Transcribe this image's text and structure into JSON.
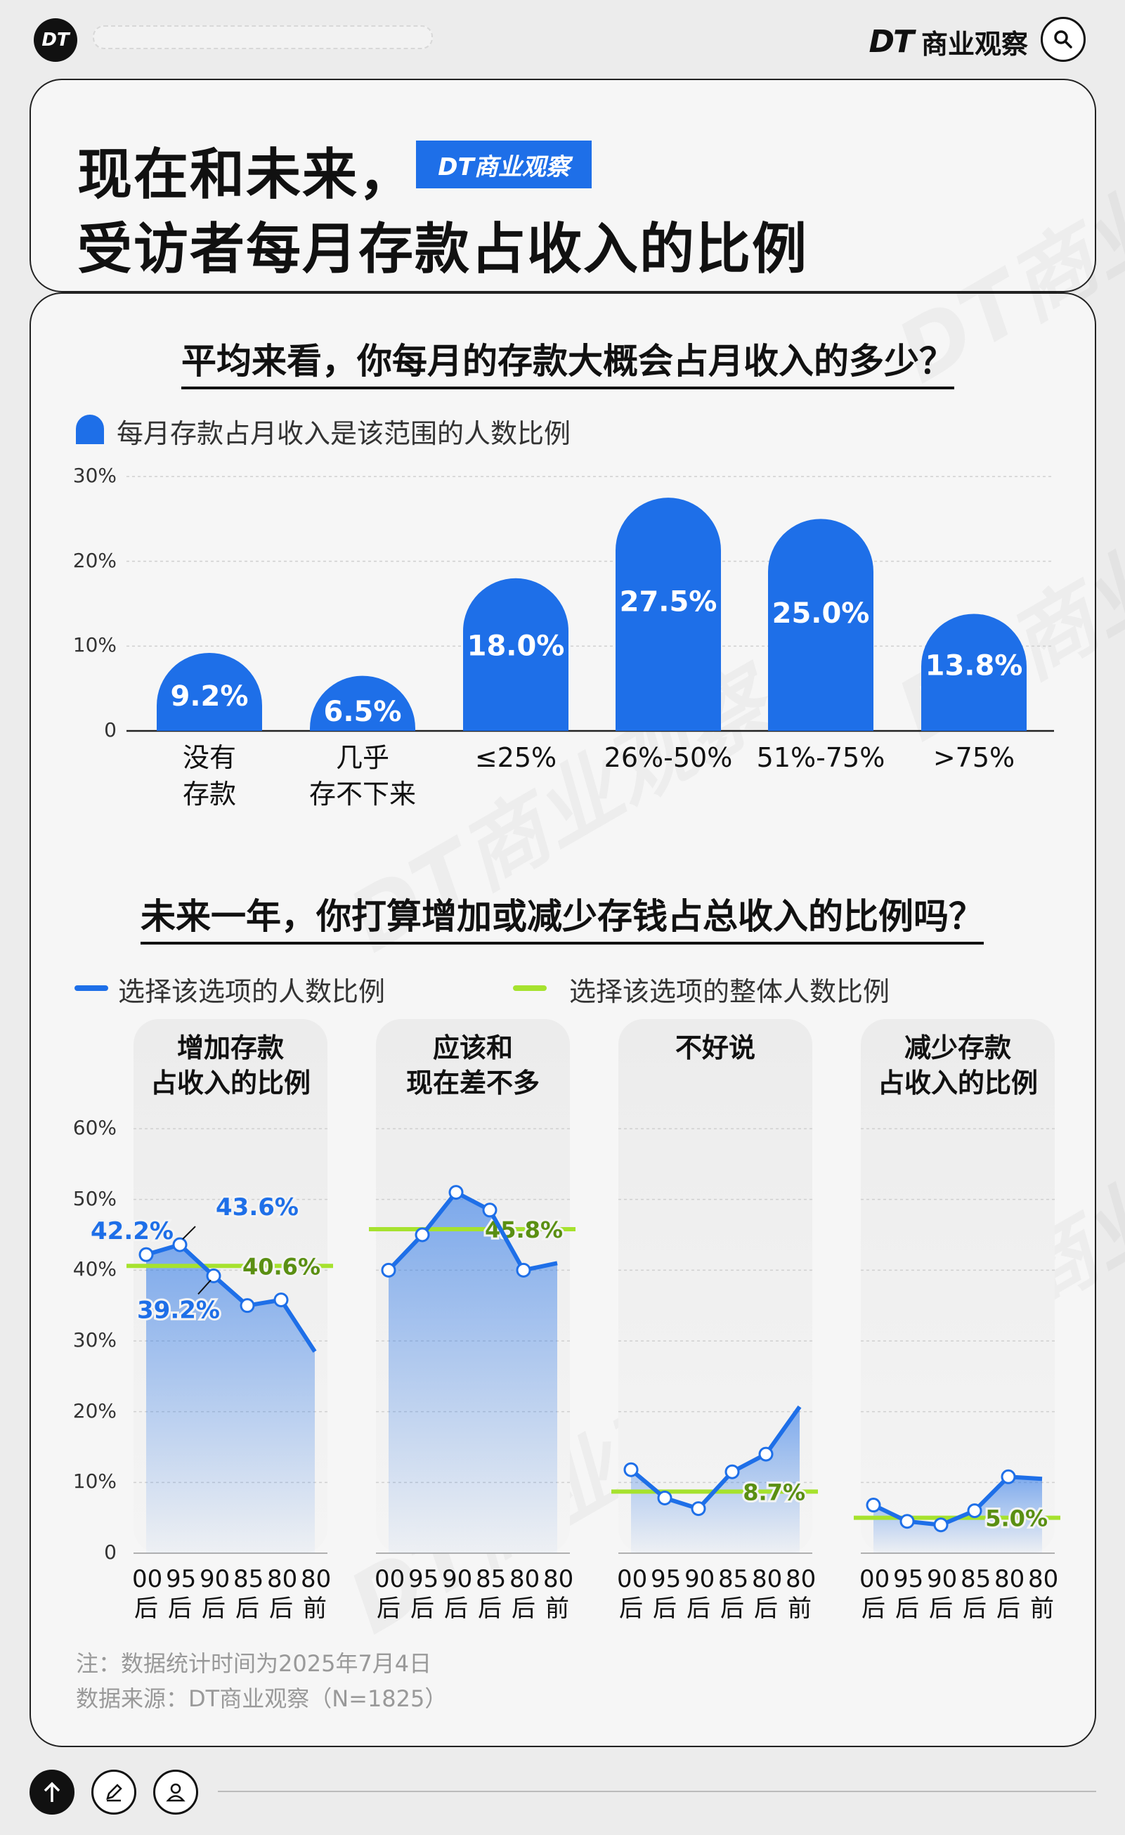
{
  "brand": {
    "logo": "DT",
    "name_dt": "DT",
    "name_cn": "商业观察"
  },
  "title": {
    "line1": "现在和未来，",
    "line2": "受访者每月存款占收入的比例",
    "badge": "DT商业观察"
  },
  "q1": {
    "title": "平均来看，你每月的存款大概会占月收入的多少？",
    "legend": "每月存款占月收入是该范围的人数比例",
    "color": "#1e6fe8"
  },
  "q2": {
    "title": "未来一年，你打算增加或减少存钱占总收入的比例吗？",
    "legend_series": "选择该选项的人数比例",
    "legend_overall": "选择该选项的整体人数比例",
    "series_color": "#1e6fe8",
    "overall_color": "#a6e22e"
  },
  "chart_data": [
    {
      "type": "bar",
      "title": "平均来看，你每月的存款大概会占月收入的多少？",
      "categories": [
        [
          "没有",
          "存款"
        ],
        [
          "几乎",
          "存不下来"
        ],
        [
          "≤25%"
        ],
        [
          "26%-50%"
        ],
        [
          "51%-75%"
        ],
        [
          ">75%"
        ]
      ],
      "values": [
        9.2,
        6.5,
        18.0,
        27.5,
        25.0,
        13.8
      ],
      "value_labels": [
        "9.2%",
        "6.5%",
        "18.0%",
        "27.5%",
        "25.0%",
        "13.8%"
      ],
      "yticks": [
        "30%",
        "20%",
        "10%",
        "0"
      ],
      "ylim": [
        0,
        30
      ],
      "legend": "每月存款占月收入是该范围的人数比例"
    },
    {
      "type": "line",
      "title": "未来一年，你打算增加或减少存钱占总收入的比例吗？",
      "yticks": [
        "60%",
        "50%",
        "40%",
        "30%",
        "20%",
        "10%",
        "0"
      ],
      "ylim": [
        0,
        60
      ],
      "x": [
        [
          "00",
          "后"
        ],
        [
          "95",
          "后"
        ],
        [
          "90",
          "后"
        ],
        [
          "85",
          "后"
        ],
        [
          "80",
          "后"
        ],
        [
          "80",
          "前"
        ]
      ],
      "panels": [
        {
          "name_lines": [
            "增加存款",
            "占收入的比例"
          ],
          "values": [
            42.2,
            43.6,
            39.2,
            35,
            35.8,
            28.5
          ],
          "overall": 40.6,
          "overall_label": "40.6%",
          "point_labels": [
            {
              "i": 0,
              "text": "42.2%"
            },
            {
              "i": 1,
              "text": "43.6%"
            },
            {
              "i": 2,
              "text": "39.2%"
            }
          ]
        },
        {
          "name_lines": [
            "应该和",
            "现在差不多"
          ],
          "values": [
            40,
            45,
            51,
            48.5,
            40,
            41
          ],
          "overall": 45.8,
          "overall_label": "45.8%",
          "point_labels": []
        },
        {
          "name_lines": [
            "不好说"
          ],
          "values": [
            11.8,
            7.8,
            6.3,
            11.5,
            14,
            20.7
          ],
          "overall": 8.7,
          "overall_label": "8.7%",
          "point_labels": []
        },
        {
          "name_lines": [
            "减少存款",
            "占收入的比例"
          ],
          "values": [
            6.8,
            4.5,
            4,
            6,
            10.8,
            10.5
          ],
          "overall": 5.0,
          "overall_label": "5.0%",
          "point_labels": []
        }
      ]
    }
  ],
  "notes": {
    "line1": "注：数据统计时间为2025年7月4日",
    "line2": "数据来源：DT商业观察（N=1825）"
  }
}
